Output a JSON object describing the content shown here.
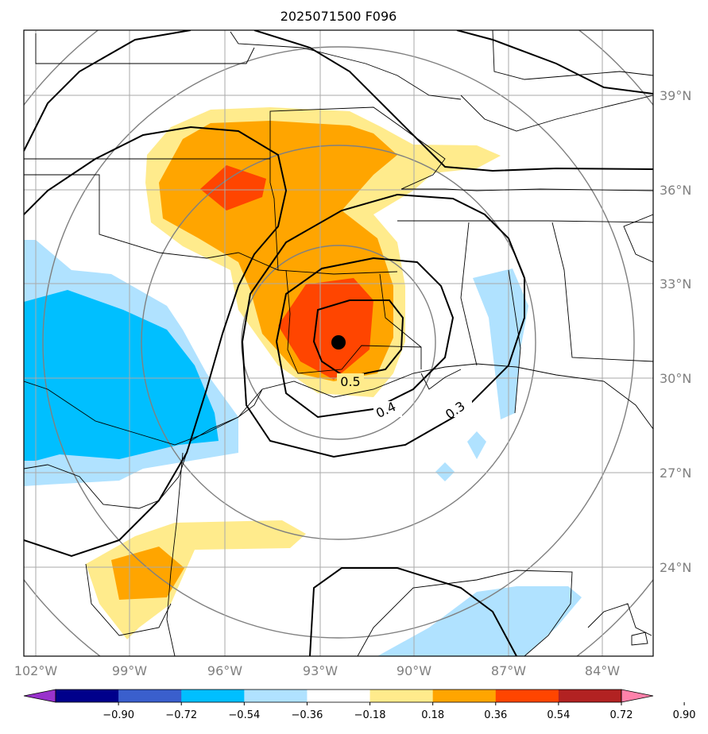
{
  "title": "2025071500 F096",
  "map": {
    "lon_labels": [
      "102°W",
      "99°W",
      "96°W",
      "93°W",
      "90°W",
      "87°W",
      "84°W"
    ],
    "lat_labels": [
      "39°N",
      "36°N",
      "33°N",
      "30°N",
      "27°N",
      "24°N"
    ],
    "contour_labels": [
      "0.5",
      "0.4",
      "0.3"
    ],
    "center_marker": "storm-center"
  },
  "colorbar": {
    "ticks": [
      "−0.90",
      "−0.72",
      "−0.54",
      "−0.36",
      "−0.18",
      "0.18",
      "0.36",
      "0.54",
      "0.72",
      "0.90"
    ],
    "colors": [
      "#9932cc",
      "#00008b",
      "#3a5fcd",
      "#00bfff",
      "#b0e2ff",
      "#ffffff",
      "#ffeb8c",
      "#ffa500",
      "#ff4500",
      "#b22222",
      "#ff82ab"
    ]
  }
}
